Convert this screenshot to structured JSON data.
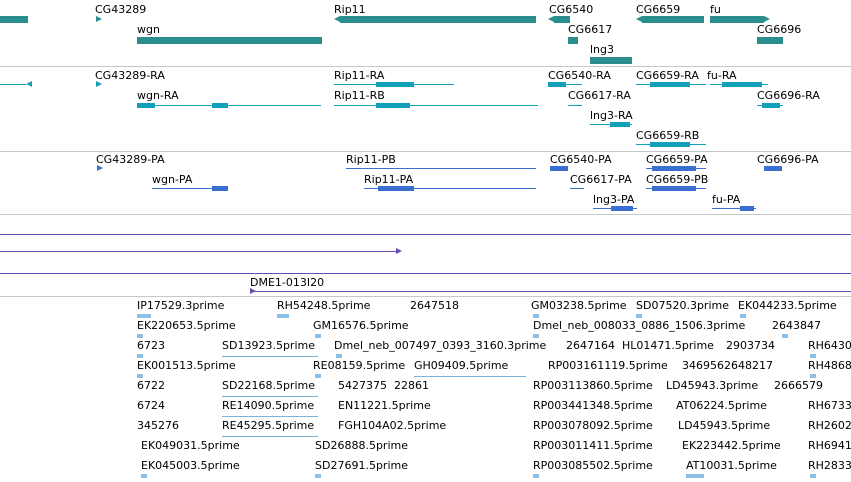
{
  "genes": {
    "labels": [
      "CG43289",
      "Rip11",
      "CG6540",
      "CG6659",
      "fu",
      "wgn",
      "CG6617",
      "CG6696",
      "lng3"
    ]
  },
  "transcripts": {
    "labels": [
      "CG43289-RA",
      "Rip11-RA",
      "CG6540-RA",
      "CG6659-RA",
      "fu-RA",
      "wgn-RA",
      "Rip11-RB",
      "CG6617-RA",
      "CG6696-RA",
      "lng3-RA",
      "CG6659-RB"
    ]
  },
  "polypeptides": {
    "labels": [
      "CG43289-PA",
      "Rip11-PB",
      "CG6540-PA",
      "CG6659-PA",
      "CG6696-PA",
      "wgn-PA",
      "Rip11-PA",
      "CG6617-PA",
      "CG6659-PB",
      "lng3-PA",
      "fu-PA"
    ]
  },
  "clone": {
    "label": "DME1-013I20"
  },
  "ests": {
    "labels": [
      "IP17529.3prime",
      "RH54248.5prime",
      "2647518",
      "GM03238.5prime",
      "SD07520.3prime",
      "EK044233.5prime",
      "EK220653.5prime",
      "GM16576.5prime",
      "Dmel_neb_008033_0886_1506.3prime",
      "2643847",
      "6723",
      "SD13923.5prime",
      "Dmel_neb_007497_0393_3160.3prime",
      "2647164",
      "HL01471.5prime",
      "2903734",
      "RH6430",
      "EK001513.5prime",
      "RE08159.5prime",
      "GH09409.5prime",
      "RP003161119.5prime",
      "3469562648217",
      "RH4868",
      "6722",
      "SD22168.5prime",
      "5427375",
      "22861",
      "RP003113860.5prime",
      "LD45943.3prime",
      "2666579",
      "6724",
      "RE14090.5prime",
      "EN11221.5prime",
      "RP003441348.5prime",
      "AT06224.5prime",
      "RH6733",
      "345276",
      "RE45295.5prime",
      "FGH104A02.5prime",
      "RP003078092.5prime",
      "LD45943.5prime",
      "RH2602",
      "EK049031.5prime",
      "SD26888.5prime",
      "RP003011411.5prime",
      "EK223442.5prime",
      "RH6941",
      "EK045003.5prime",
      "SD27691.5prime",
      "RP003085502.5prime",
      "AT10031.5prime",
      "RH2833"
    ]
  },
  "colors": {
    "gene": "#2a8e8e",
    "transcript": "#12a0b8",
    "polypeptide": "#3a6fd0",
    "clone": "#6a4bb0",
    "est": "#8cc0e6"
  }
}
